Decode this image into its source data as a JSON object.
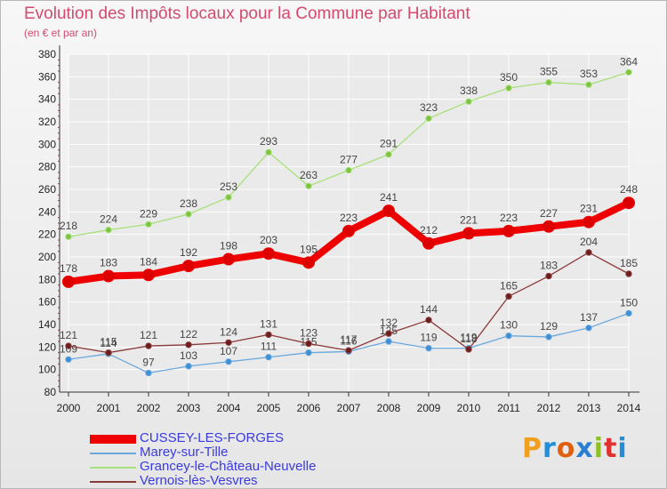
{
  "title": "Evolution des Impôts locaux pour la Commune par Habitant",
  "subtitle": "(en € et par an)",
  "logo": {
    "text": "Proxiti",
    "letter_colors": [
      "#f0a020",
      "#1e8fd8",
      "#e06010",
      "#2a7fd0",
      "#90c020",
      "#e03030",
      "#1e8fd8"
    ]
  },
  "colors": {
    "background": "#eeeeee",
    "grid": "#ffffff",
    "axis": "#333333",
    "title": "#d44a6e",
    "legend_text": "#3a3ae0"
  },
  "chart_data": {
    "type": "line",
    "title": "Evolution des Impôts locaux pour la Commune par Habitant",
    "subtitle": "(en € et par an)",
    "x": [
      2000,
      2001,
      2002,
      2003,
      2004,
      2005,
      2006,
      2007,
      2008,
      2009,
      2010,
      2011,
      2012,
      2013,
      2014
    ],
    "ylim": [
      80,
      380
    ],
    "yticks": [
      80,
      100,
      120,
      140,
      160,
      180,
      200,
      220,
      240,
      260,
      280,
      300,
      320,
      340,
      360,
      380
    ],
    "grid": true,
    "legend_position": "bottom-left",
    "series": [
      {
        "name": "CUSSEY-LES-FORGES",
        "color": "#ee0000",
        "marker_color": "#dd0000",
        "emphasis": true,
        "values": [
          178,
          183,
          184,
          192,
          198,
          203,
          195,
          223,
          241,
          212,
          221,
          223,
          227,
          231,
          248
        ]
      },
      {
        "name": "Marey-sur-Tille",
        "color": "#6aa8dc",
        "marker_color": "#3d8fd6",
        "values": [
          109,
          114,
          97,
          103,
          107,
          111,
          115,
          116,
          125,
          119,
          119,
          130,
          129,
          137,
          150
        ]
      },
      {
        "name": "Grancey-le-Château-Neuvelle",
        "color": "#a8e07a",
        "marker_color": "#7cc440",
        "values": [
          218,
          224,
          229,
          238,
          253,
          293,
          263,
          277,
          291,
          323,
          338,
          350,
          355,
          353,
          364
        ]
      },
      {
        "name": "Vernois-lès-Vesvres",
        "color": "#8b3a3a",
        "marker_color": "#6b1f1f",
        "values": [
          121,
          115,
          121,
          122,
          124,
          131,
          123,
          117,
          132,
          144,
          118,
          165,
          183,
          204,
          185
        ]
      }
    ]
  }
}
